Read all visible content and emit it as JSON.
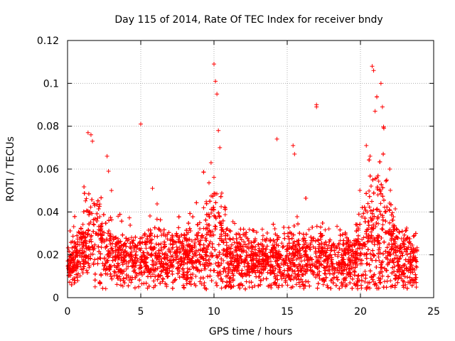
{
  "chart_data": {
    "type": "scatter",
    "title": "Day 115 of 2014, Rate Of TEC Index for receiver bndy",
    "xlabel": "GPS time / hours",
    "ylabel": "ROTI / TECUs",
    "xlim": [
      0,
      25
    ],
    "ylim": [
      0,
      0.12
    ],
    "x_ticks": [
      0,
      5,
      10,
      15,
      20,
      25
    ],
    "x_tick_labels": [
      "0",
      "5",
      "10",
      "15",
      "20",
      "25"
    ],
    "y_ticks": [
      0,
      0.02,
      0.04,
      0.06,
      0.08,
      0.1,
      0.12
    ],
    "y_tick_labels": [
      "0",
      "0.02",
      "0.04",
      "0.06",
      "0.08",
      "0.1",
      "0.12"
    ],
    "grid": true,
    "marker": "+",
    "series_color": "#ff0000",
    "series": [
      {
        "name": "ROTI",
        "description": "dense cloud of + markers, mostly between 0.005 and 0.035 TECU/min, with activity peaks",
        "notable_points": [
          {
            "x": 1.4,
            "y": 0.077
          },
          {
            "x": 1.6,
            "y": 0.076
          },
          {
            "x": 1.7,
            "y": 0.073
          },
          {
            "x": 2.7,
            "y": 0.066
          },
          {
            "x": 2.8,
            "y": 0.059
          },
          {
            "x": 3.0,
            "y": 0.05
          },
          {
            "x": 5.0,
            "y": 0.081
          },
          {
            "x": 5.8,
            "y": 0.051
          },
          {
            "x": 9.8,
            "y": 0.063
          },
          {
            "x": 10.0,
            "y": 0.109
          },
          {
            "x": 10.1,
            "y": 0.101
          },
          {
            "x": 10.2,
            "y": 0.095
          },
          {
            "x": 10.3,
            "y": 0.078
          },
          {
            "x": 10.4,
            "y": 0.07
          },
          {
            "x": 14.3,
            "y": 0.074
          },
          {
            "x": 15.4,
            "y": 0.071
          },
          {
            "x": 15.5,
            "y": 0.067
          },
          {
            "x": 17.0,
            "y": 0.09
          },
          {
            "x": 17.0,
            "y": 0.089
          },
          {
            "x": 20.4,
            "y": 0.071
          },
          {
            "x": 20.8,
            "y": 0.108
          },
          {
            "x": 20.9,
            "y": 0.106
          },
          {
            "x": 21.0,
            "y": 0.087
          },
          {
            "x": 21.4,
            "y": 0.1
          },
          {
            "x": 21.5,
            "y": 0.089
          },
          {
            "x": 21.6,
            "y": 0.079
          },
          {
            "x": 22.0,
            "y": 0.06
          }
        ],
        "time_profile": [
          {
            "t": 0.0,
            "base": 0.016,
            "spread": 0.01
          },
          {
            "t": 1.0,
            "base": 0.02,
            "spread": 0.016
          },
          {
            "t": 1.6,
            "base": 0.03,
            "spread": 0.028
          },
          {
            "t": 2.5,
            "base": 0.022,
            "spread": 0.018
          },
          {
            "t": 4.0,
            "base": 0.018,
            "spread": 0.014
          },
          {
            "t": 6.0,
            "base": 0.019,
            "spread": 0.016
          },
          {
            "t": 8.5,
            "base": 0.019,
            "spread": 0.016
          },
          {
            "t": 9.9,
            "base": 0.028,
            "spread": 0.03
          },
          {
            "t": 10.2,
            "base": 0.032,
            "spread": 0.04
          },
          {
            "t": 11.0,
            "base": 0.018,
            "spread": 0.016
          },
          {
            "t": 13.0,
            "base": 0.017,
            "spread": 0.014
          },
          {
            "t": 15.0,
            "base": 0.018,
            "spread": 0.016
          },
          {
            "t": 17.0,
            "base": 0.018,
            "spread": 0.016
          },
          {
            "t": 19.5,
            "base": 0.017,
            "spread": 0.016
          },
          {
            "t": 20.7,
            "base": 0.03,
            "spread": 0.034
          },
          {
            "t": 21.3,
            "base": 0.03,
            "spread": 0.04
          },
          {
            "t": 22.5,
            "base": 0.02,
            "spread": 0.018
          },
          {
            "t": 23.8,
            "base": 0.016,
            "spread": 0.014
          }
        ],
        "x_start": 0.0,
        "x_end": 23.9
      }
    ]
  }
}
